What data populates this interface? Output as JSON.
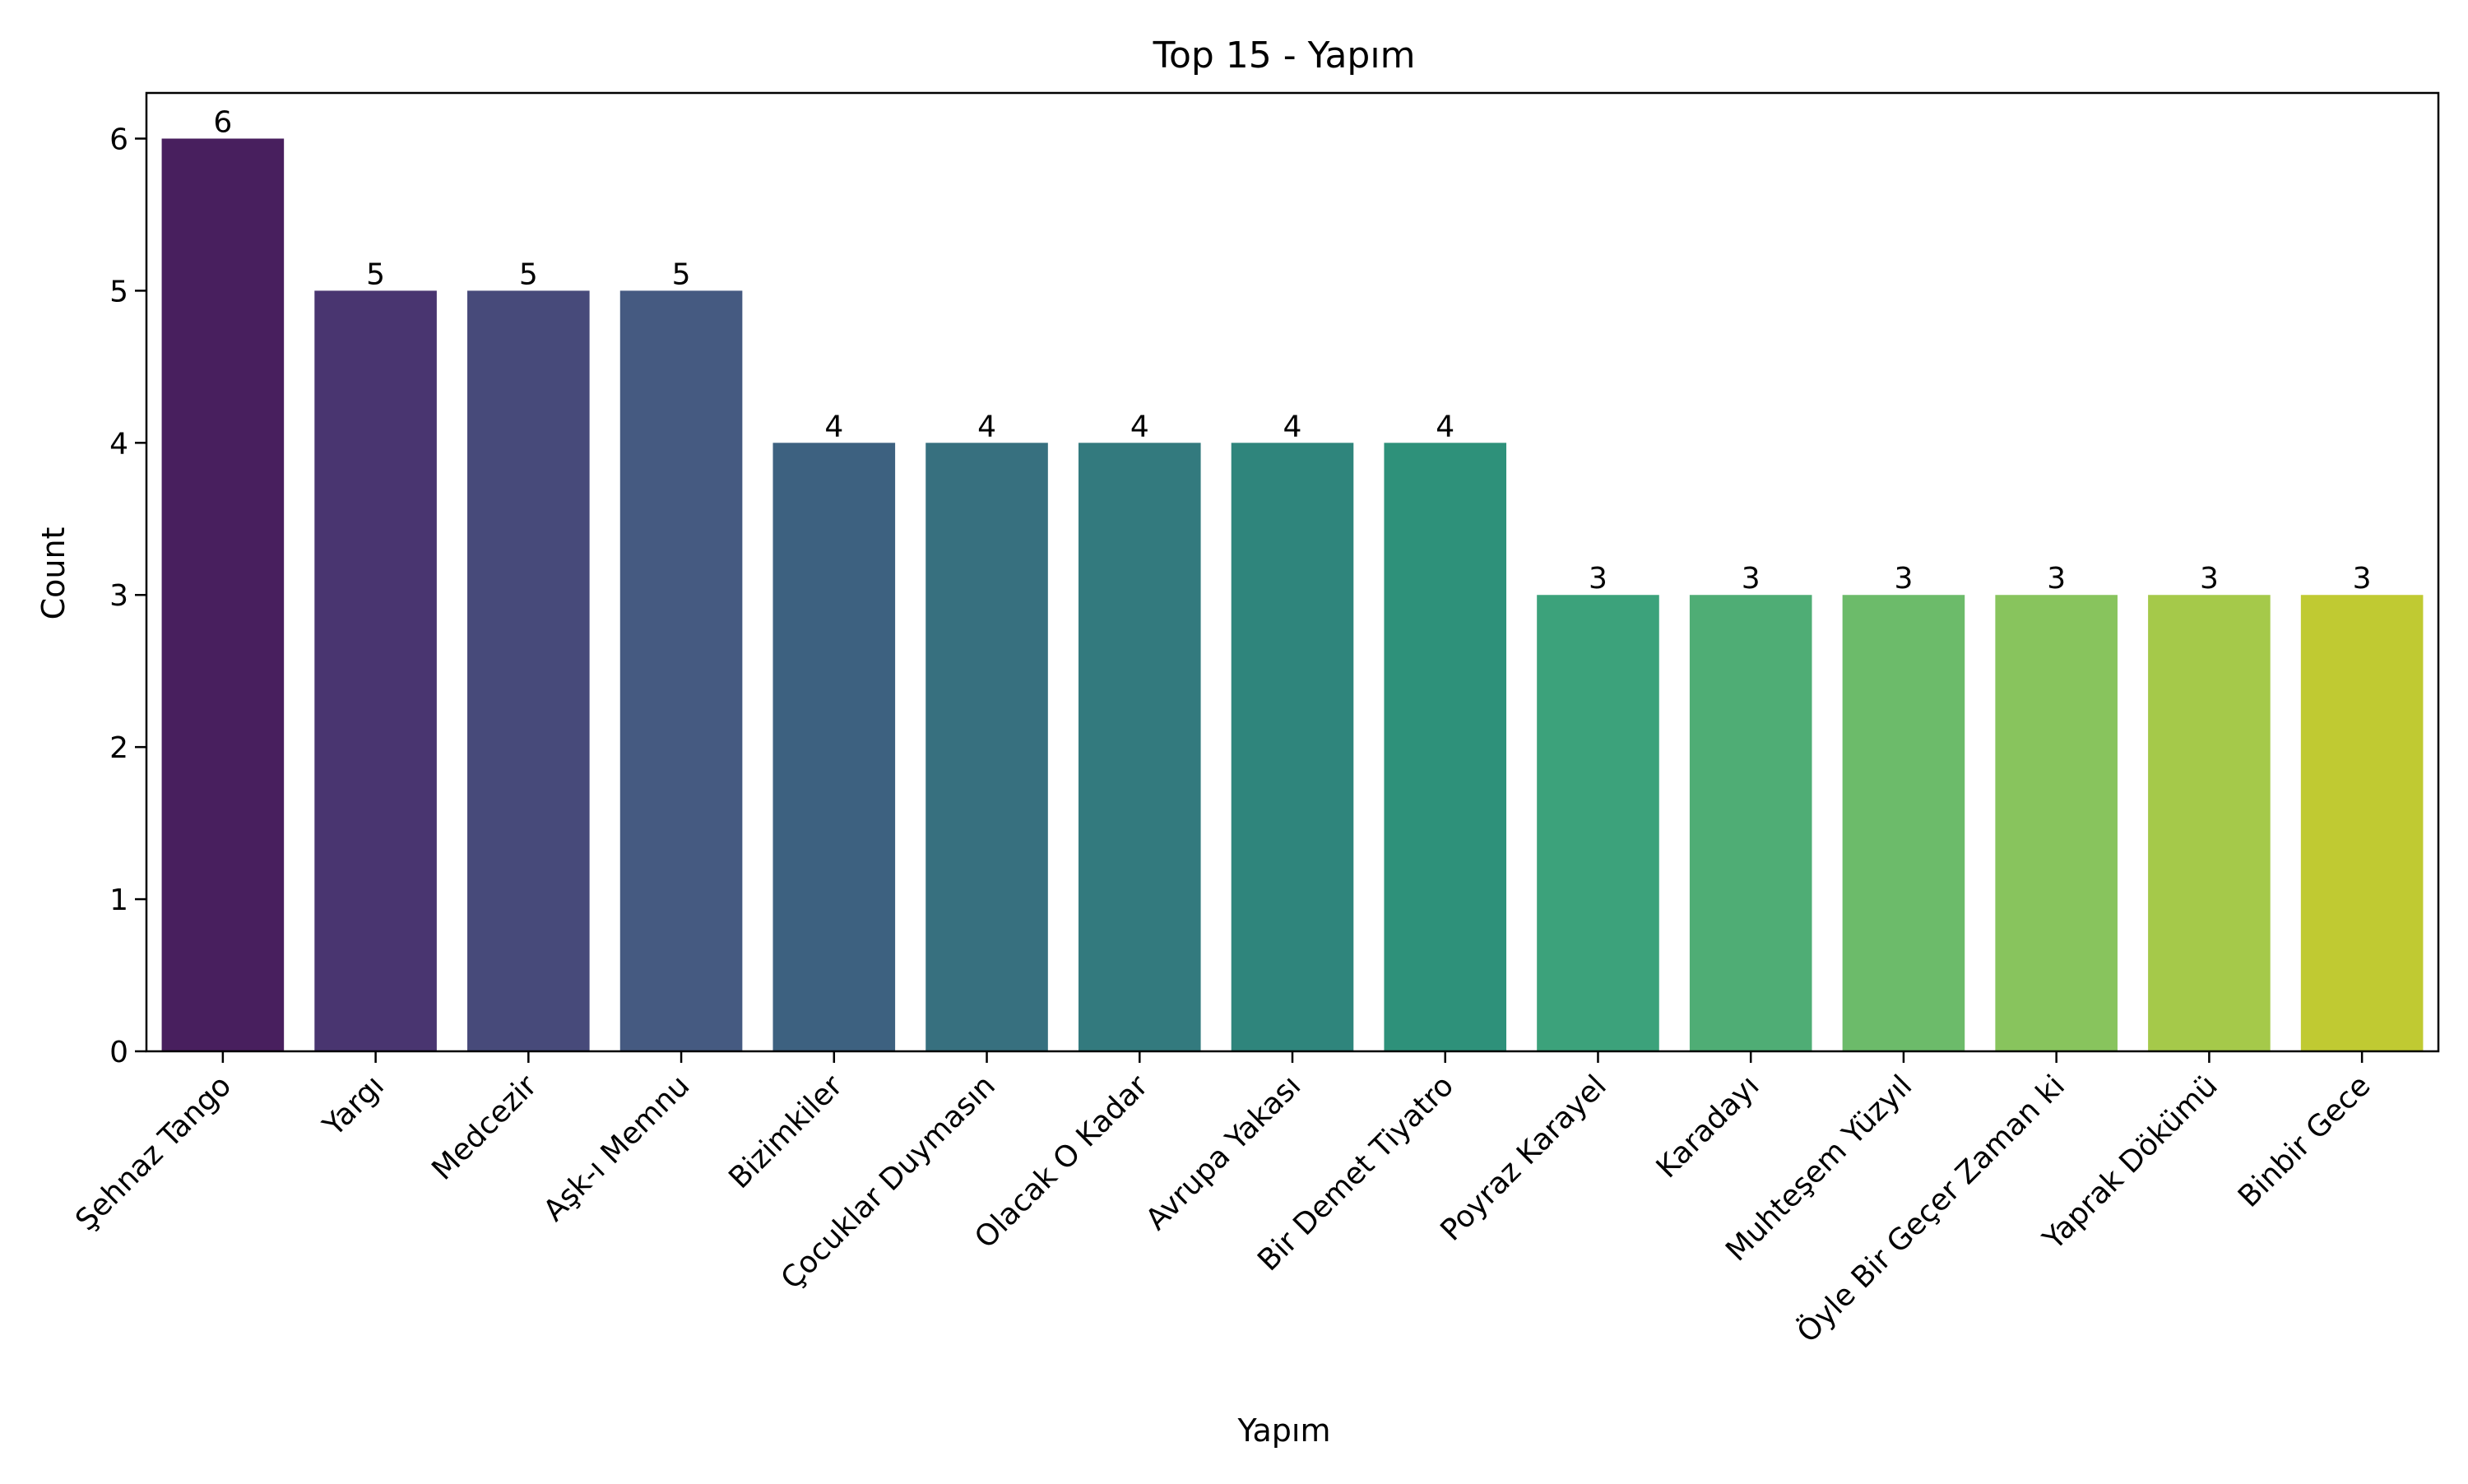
{
  "chart_data": {
    "type": "bar",
    "title": "Top 15 - Yapım",
    "xlabel": "Yapım",
    "ylabel": "Count",
    "categories": [
      "Şehnaz Tango",
      "Yargı",
      "Medcezir",
      "Aşk-ı Memnu",
      "Bizimkiler",
      "Çocuklar Duymasın",
      "Olacak O Kadar",
      "Avrupa Yakası",
      "Bir Demet Tiyatro",
      "Poyraz Karayel",
      "Karadayı",
      "Muhteşem Yüzyıl",
      "Öyle Bir Geçer Zaman ki",
      "Yaprak Dökümü",
      "Binbir Gece"
    ],
    "values": [
      6,
      5,
      5,
      5,
      4,
      4,
      4,
      4,
      4,
      3,
      3,
      3,
      3,
      3,
      3
    ],
    "ylim": [
      0,
      6.3
    ],
    "yticks": [
      0,
      1,
      2,
      3,
      4,
      5,
      6
    ],
    "grid": false,
    "legend": "none",
    "colors": [
      "#481f5e",
      "#493570",
      "#474a7a",
      "#455a81",
      "#3d6180",
      "#37707f",
      "#337a7e",
      "#2f857c",
      "#2e917a",
      "#3ca27b",
      "#4fad75",
      "#6cbb6a",
      "#88c45d",
      "#a5c94a",
      "#c0ca32"
    ]
  }
}
